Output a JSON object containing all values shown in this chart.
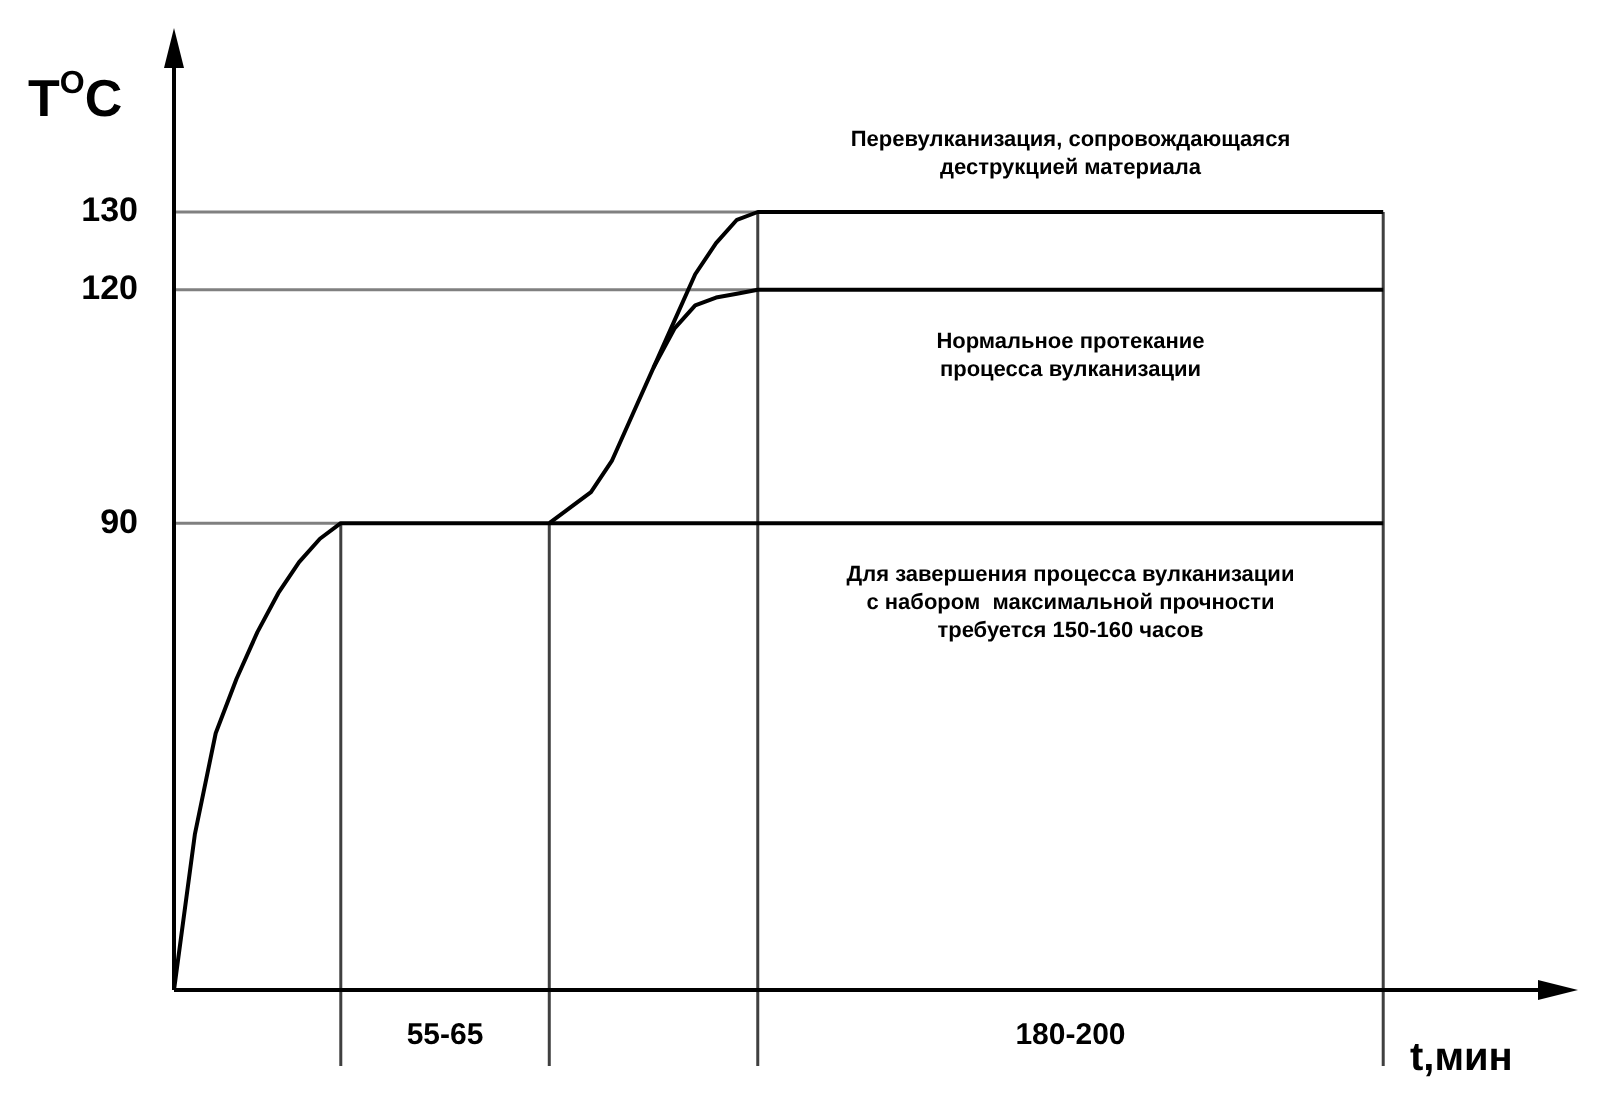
{
  "chart_data": {
    "type": "line",
    "ylabel": "T$^{O}$C",
    "xlabel": "t,мин",
    "ylim": [
      30,
      150
    ],
    "yticks": [
      90,
      120,
      130
    ],
    "grid": false,
    "legend": false,
    "marker": "none",
    "line_style": "solid",
    "categories": [
      null,
      null,
      null,
      null,
      null,
      null,
      null,
      null,
      null,
      null,
      null,
      null,
      null,
      "55-65",
      null,
      null,
      null,
      null,
      null,
      null,
      null,
      null,
      null,
      null,
      null,
      null,
      null,
      null,
      null,
      null,
      null,
      null,
      null,
      null,
      null,
      null,
      null,
      null,
      null,
      null,
      null,
      null,
      null,
      "180-200",
      null,
      null,
      null,
      null,
      null,
      null,
      null,
      null,
      null,
      null,
      null,
      null,
      null,
      null,
      null,
      null,
      null,
      null,
      null,
      null,
      null,
      null,
      null
    ],
    "series": [
      {
        "color": "#000000",
        "values": [
          30,
          50,
          63,
          70,
          76,
          81,
          85,
          88,
          90,
          90,
          90,
          90,
          90,
          90,
          90,
          90,
          90,
          90,
          90,
          92,
          94,
          98,
          104,
          110,
          116,
          122,
          126,
          129,
          130,
          130,
          130,
          130,
          130,
          130,
          130,
          130,
          130,
          130,
          130,
          130,
          130,
          130,
          130,
          130,
          130,
          130,
          130,
          130,
          130,
          130,
          130,
          130,
          130,
          130,
          130,
          130,
          130,
          130,
          130,
          null,
          null,
          null,
          null,
          null,
          null,
          null,
          null
        ]
      },
      {
        "color": "#000000",
        "values": [
          null,
          null,
          null,
          null,
          null,
          null,
          null,
          null,
          null,
          null,
          null,
          null,
          null,
          null,
          null,
          null,
          null,
          null,
          null,
          null,
          null,
          null,
          null,
          110,
          115,
          118,
          119,
          119.5,
          120,
          120,
          120,
          120,
          120,
          120,
          120,
          120,
          120,
          120,
          120,
          120,
          120,
          120,
          120,
          120,
          120,
          120,
          120,
          120,
          120,
          120,
          120,
          120,
          120,
          120,
          120,
          120,
          120,
          120,
          120,
          null,
          null,
          null,
          null,
          null,
          null,
          null,
          null
        ]
      },
      {
        "color": "#000000",
        "values": [
          null,
          null,
          null,
          null,
          null,
          null,
          null,
          null,
          null,
          null,
          null,
          null,
          null,
          null,
          null,
          null,
          null,
          null,
          90,
          90,
          90,
          90,
          90,
          90,
          90,
          90,
          90,
          90,
          90,
          90,
          90,
          90,
          90,
          90,
          90,
          90,
          90,
          90,
          90,
          90,
          90,
          90,
          90,
          90,
          90,
          90,
          90,
          90,
          90,
          90,
          90,
          90,
          90,
          90,
          90,
          90,
          90,
          90,
          90,
          null,
          null,
          null,
          null,
          null,
          null,
          null,
          null
        ]
      }
    ],
    "ref_lines": [
      {
        "axis": "y",
        "value": 90,
        "color": "#808080"
      },
      {
        "axis": "y",
        "value": 120,
        "color": "#808080"
      },
      {
        "axis": "y",
        "value": 130,
        "color": "#808080"
      }
    ],
    "annotations": [
      "Перевулканизация, сопровождающаяся\nдеструкцией материала",
      "Нормальное протекание\nпроцесса вулканизации",
      "Для завершения процесса вулканизации\nс набором  максимальной прочности\nтребуется 150-160 часов"
    ]
  }
}
